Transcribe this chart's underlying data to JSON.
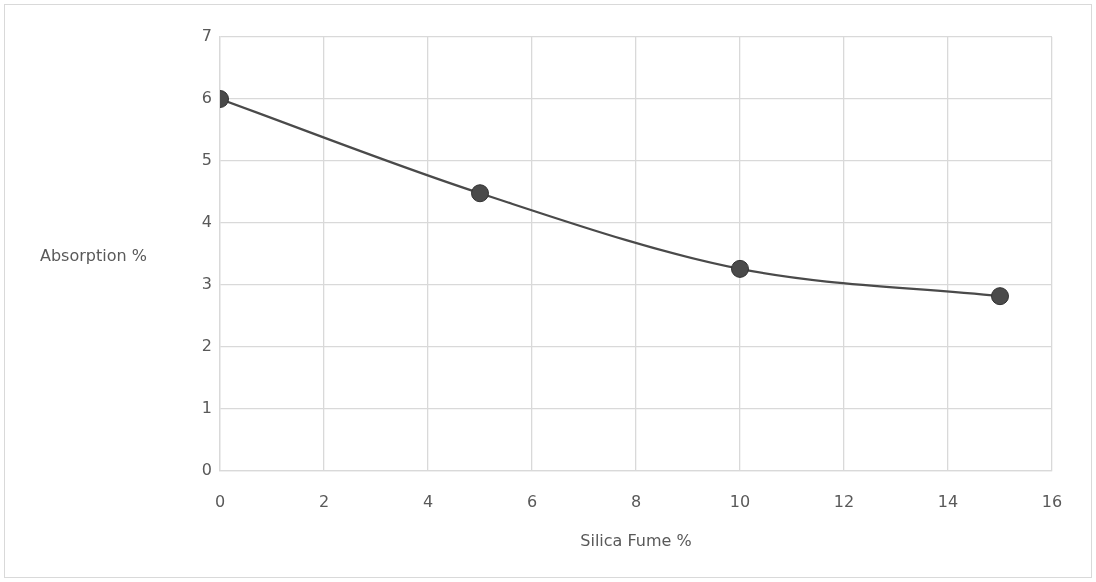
{
  "chart_data": {
    "type": "line",
    "xlabel": "Silica Fume %",
    "ylabel": "Absorption %",
    "x": [
      0,
      5,
      10,
      15
    ],
    "values": [
      6,
      4.48,
      3.26,
      2.82
    ],
    "color": "#4a4a4a",
    "xlim": [
      0,
      16
    ],
    "xticks": [
      0,
      2,
      4,
      6,
      8,
      10,
      12,
      14,
      16
    ],
    "ylim": [
      0,
      7
    ],
    "yticks": [
      0,
      1,
      2,
      3,
      4,
      5,
      6,
      7
    ],
    "grid": true,
    "legend": false,
    "marker": "circle",
    "line_style": "solid"
  }
}
